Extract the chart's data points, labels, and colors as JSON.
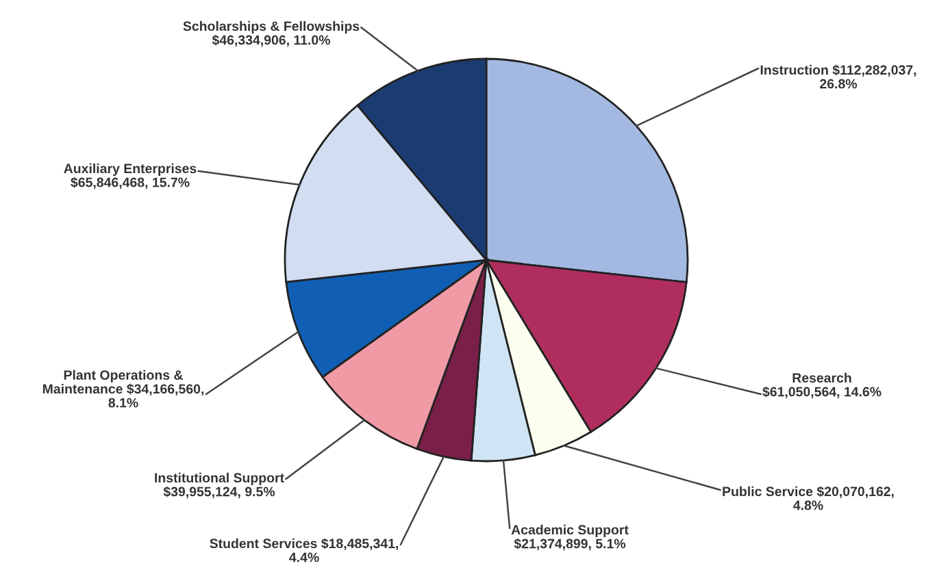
{
  "chart_data": {
    "type": "pie",
    "categories": [
      "Instruction",
      "Research",
      "Public Service",
      "Academic Support",
      "Student Services",
      "Institutional Support",
      "Plant Operations & Maintenance",
      "Auxiliary Enterprises",
      "Scholarships & Fellowships"
    ],
    "values": [
      112282037,
      61050564,
      20070162,
      21374899,
      18485341,
      39955124,
      34166560,
      65846468,
      46334906
    ],
    "value_labels": [
      "$112,282,037, 26.8%",
      "$61,050,564, 14.6%",
      "$20,070,162, 4.8%",
      "$21,374,899, 5.1%",
      "$18,485,341, 4.4%",
      "$39,955,124, 9.5%",
      "$34,166,560, 8.1%",
      "$65,846,468, 15.7%",
      "$46,334,906, 11.0%"
    ],
    "colors": [
      "#a3b9e2",
      "#b02e5e",
      "#fdfdf0",
      "#cfe5f5",
      "#7a1f48",
      "#ef9aa5",
      "#115fb5",
      "#d2ddf2",
      "#1b3c72"
    ]
  }
}
